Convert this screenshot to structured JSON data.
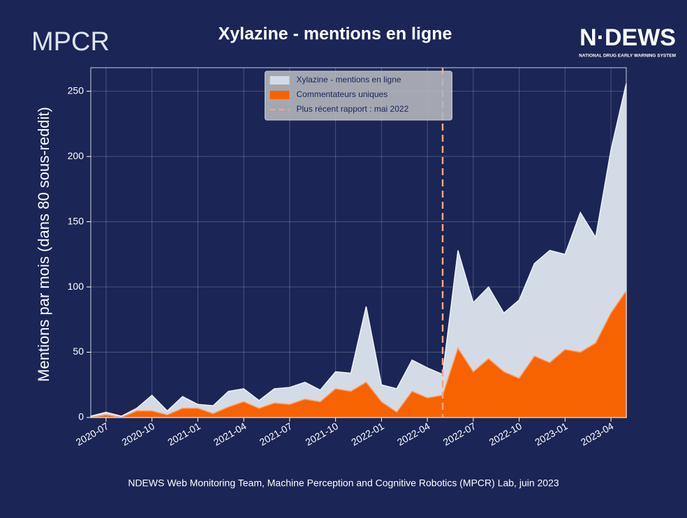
{
  "chart_data": {
    "type": "area",
    "title": "Xylazine - mentions en ligne",
    "logo_left": "MPCR",
    "logo_right": "N·DEWS",
    "logo_right_subtitle": "NATIONAL DRUG EARLY WARNING SYSTEM",
    "ylabel": "Mentions par mois (dans 80 sous-reddit)",
    "footer": "NDEWS Web Monitoring Team, Machine Perception and Cognitive Robotics (MPCR) Lab, juin 2023",
    "x": [
      "2020-06",
      "2020-07",
      "2020-08",
      "2020-09",
      "2020-10",
      "2020-11",
      "2020-12",
      "2021-01",
      "2021-02",
      "2021-03",
      "2021-04",
      "2021-05",
      "2021-06",
      "2021-07",
      "2021-08",
      "2021-09",
      "2021-10",
      "2021-11",
      "2021-12",
      "2022-01",
      "2022-02",
      "2022-03",
      "2022-04",
      "2022-05",
      "2022-06",
      "2022-07",
      "2022-08",
      "2022-09",
      "2022-10",
      "2022-11",
      "2022-12",
      "2023-01",
      "2023-02",
      "2023-03",
      "2023-04",
      "2023-05"
    ],
    "series": [
      {
        "name": "Xylazine - mentions en ligne",
        "color": "#d3dbe7",
        "values": [
          1,
          4,
          1,
          7,
          17,
          5,
          16,
          10,
          9,
          20,
          22,
          13,
          22,
          23,
          27,
          21,
          35,
          34,
          85,
          25,
          22,
          44,
          38,
          33,
          128,
          88,
          100,
          80,
          90,
          118,
          128,
          125,
          157,
          138,
          205,
          256
        ]
      },
      {
        "name": "Commentateurs uniques",
        "color": "#f76300",
        "values": [
          0,
          2,
          0,
          5,
          5,
          2,
          7,
          7,
          3,
          8,
          12,
          7,
          11,
          10,
          14,
          12,
          22,
          20,
          27,
          12,
          4,
          20,
          15,
          17,
          53,
          35,
          45,
          35,
          30,
          47,
          42,
          52,
          50,
          57,
          80,
          97
        ]
      }
    ],
    "report": {
      "name": "Plus récent rapport : mai 2022",
      "x": "2022-05",
      "color": "#f4a582"
    },
    "xlim": [
      "2020-06",
      "2023-05"
    ],
    "xticks": [
      "2020-07",
      "2020-10",
      "2021-01",
      "2021-04",
      "2021-07",
      "2021-10",
      "2022-01",
      "2022-04",
      "2022-07",
      "2022-10",
      "2023-01",
      "2023-04"
    ],
    "ylim": [
      0,
      268
    ],
    "yticks": [
      0,
      50,
      100,
      150,
      200,
      250
    ],
    "grid": true,
    "legend": "upper center"
  }
}
